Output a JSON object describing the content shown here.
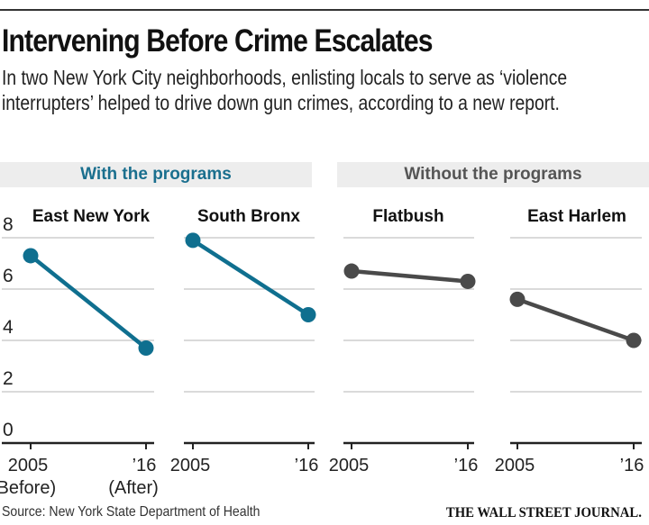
{
  "header": {
    "title": "Intervening Before Crime Escalates",
    "subtitle": "In two New York City neighborhoods, enlisting locals to serve as ‘violence interrupters’ helped to drive down gun crimes, according to a new report."
  },
  "groups": {
    "with": "With the programs",
    "without": "Without the programs"
  },
  "colors": {
    "with": "#0f6f8f",
    "without": "#4a4a4a",
    "grid": "#c4c4c4",
    "axis": "#222222"
  },
  "footer": {
    "source": "Source: New York State Department of Health",
    "brand": "THE WALL STREET JOURNAL."
  },
  "chart_data": {
    "type": "line",
    "title": "Intervening Before Crime Escalates",
    "ylim": [
      0,
      8
    ],
    "yticks": [
      "0",
      "2",
      "4",
      "6",
      "8"
    ],
    "ytick_values": [
      0,
      2,
      4,
      6,
      8
    ],
    "grid": true,
    "panels": [
      {
        "name": "East New York",
        "group": "with",
        "x_labels": [
          "2005",
          "’16"
        ],
        "x_sublabels": [
          "(Before)",
          "(After)"
        ],
        "values": [
          7.3,
          3.7
        ]
      },
      {
        "name": "South Bronx",
        "group": "with",
        "x_labels": [
          "2005",
          "’16"
        ],
        "x_sublabels": [
          "",
          ""
        ],
        "values": [
          7.9,
          5.0
        ]
      },
      {
        "name": "Flatbush",
        "group": "without",
        "x_labels": [
          "2005",
          "’16"
        ],
        "x_sublabels": [
          "",
          ""
        ],
        "values": [
          6.7,
          6.3
        ]
      },
      {
        "name": "East Harlem",
        "group": "without",
        "x_labels": [
          "2005",
          "’16"
        ],
        "x_sublabels": [
          "",
          ""
        ],
        "values": [
          5.6,
          4.0
        ]
      }
    ]
  }
}
